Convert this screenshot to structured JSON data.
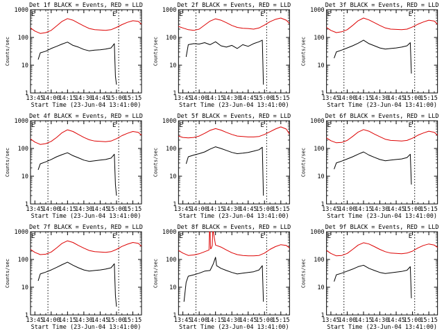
{
  "shared": {
    "legend_title_suffix": "BLACK = Events, RED = LLD",
    "xlabel": "Start Time (23-Jun-04 13:41:00)",
    "ylabel": "Counts/sec",
    "x_tick_labels": [
      "13:45",
      "14:00",
      "14:15",
      "14:30",
      "14:45",
      "15:00",
      "15:15"
    ],
    "x_tick_minutes": [
      -10,
      5,
      20,
      35,
      50,
      65,
      80
    ],
    "x_range_minutes": [
      -14,
      88
    ],
    "y_tick_labels": [
      "1",
      "10",
      "100",
      "1000"
    ],
    "y_tick_values": [
      1,
      10,
      100,
      1000
    ],
    "y_range": [
      1,
      1000
    ],
    "y_scale": "log",
    "vline_minutes": [
      2,
      67
    ],
    "event_marker": "E",
    "colors": {
      "events": "#000000",
      "lld": "#dd0000",
      "axes": "#000000",
      "vline": "#000000"
    }
  },
  "chart_data": [
    {
      "type": "line",
      "detector": "1f",
      "title": "Det 1f BLACK = Events, RED = LLD",
      "series": [
        {
          "name": "Events",
          "color": "#000000",
          "x": [
            -7,
            -5,
            0,
            5,
            10,
            15,
            20,
            25,
            30,
            35,
            40,
            45,
            50,
            55,
            60,
            63,
            64,
            65
          ],
          "y": [
            16,
            28,
            32,
            40,
            48,
            58,
            68,
            52,
            45,
            37,
            33,
            35,
            36,
            38,
            42,
            60,
            4,
            2
          ]
        },
        {
          "name": "LLD",
          "color": "#dd0000",
          "x": [
            -14,
            -10,
            -5,
            0,
            5,
            10,
            15,
            20,
            25,
            30,
            35,
            40,
            45,
            50,
            55,
            60,
            65,
            70,
            75,
            80,
            85,
            88
          ],
          "y": [
            220,
            170,
            140,
            150,
            180,
            260,
            380,
            480,
            420,
            330,
            260,
            210,
            190,
            185,
            180,
            190,
            230,
            290,
            350,
            400,
            380,
            300
          ]
        }
      ]
    },
    {
      "type": "line",
      "detector": "2f",
      "title": "Det 2f BLACK = Events, RED = LLD",
      "series": [
        {
          "name": "Events",
          "color": "#000000",
          "x": [
            -7,
            -5,
            0,
            5,
            10,
            15,
            20,
            25,
            30,
            35,
            40,
            45,
            50,
            55,
            60,
            63,
            64
          ],
          "y": [
            20,
            55,
            60,
            58,
            65,
            55,
            70,
            50,
            45,
            52,
            40,
            55,
            48,
            60,
            70,
            80,
            2
          ]
        },
        {
          "name": "LLD",
          "color": "#dd0000",
          "x": [
            -14,
            -10,
            -5,
            0,
            5,
            10,
            15,
            20,
            25,
            30,
            35,
            40,
            45,
            50,
            55,
            60,
            65,
            70,
            75,
            80,
            85,
            88
          ],
          "y": [
            250,
            220,
            190,
            180,
            200,
            280,
            390,
            470,
            420,
            340,
            270,
            230,
            215,
            210,
            200,
            220,
            280,
            370,
            450,
            500,
            420,
            320
          ]
        }
      ]
    },
    {
      "type": "line",
      "detector": "3f",
      "title": "Det 3f BLACK = Events, RED = LLD",
      "series": [
        {
          "name": "Events",
          "color": "#000000",
          "x": [
            -7,
            -5,
            0,
            5,
            10,
            15,
            20,
            25,
            30,
            35,
            40,
            45,
            50,
            55,
            60,
            63,
            64
          ],
          "y": [
            18,
            30,
            35,
            42,
            50,
            62,
            80,
            60,
            50,
            42,
            38,
            40,
            42,
            45,
            50,
            65,
            5
          ]
        },
        {
          "name": "LLD",
          "color": "#dd0000",
          "x": [
            -14,
            -10,
            -5,
            0,
            5,
            10,
            15,
            20,
            25,
            30,
            35,
            40,
            45,
            50,
            55,
            60,
            65,
            70,
            75,
            80,
            85,
            88
          ],
          "y": [
            230,
            180,
            150,
            160,
            190,
            270,
            400,
            500,
            430,
            340,
            270,
            220,
            200,
            195,
            190,
            200,
            240,
            300,
            360,
            420,
            390,
            300
          ]
        }
      ]
    },
    {
      "type": "line",
      "detector": "4f",
      "title": "Det 4f BLACK = Events, RED = LLD",
      "series": [
        {
          "name": "Events",
          "color": "#000000",
          "x": [
            -7,
            -5,
            0,
            5,
            10,
            15,
            20,
            25,
            30,
            35,
            40,
            45,
            50,
            55,
            60,
            63,
            64,
            65
          ],
          "y": [
            17,
            28,
            33,
            40,
            50,
            60,
            70,
            55,
            46,
            38,
            34,
            36,
            38,
            40,
            45,
            62,
            5,
            2
          ]
        },
        {
          "name": "LLD",
          "color": "#dd0000",
          "x": [
            -14,
            -10,
            -5,
            0,
            5,
            10,
            15,
            20,
            25,
            30,
            35,
            40,
            45,
            50,
            55,
            60,
            65,
            70,
            75,
            80,
            85,
            88
          ],
          "y": [
            220,
            170,
            140,
            150,
            180,
            250,
            370,
            470,
            410,
            320,
            250,
            205,
            185,
            180,
            175,
            185,
            225,
            290,
            350,
            410,
            380,
            300
          ]
        }
      ]
    },
    {
      "type": "line",
      "detector": "5f",
      "title": "Det 5f BLACK = Events, RED = LLD",
      "series": [
        {
          "name": "Events",
          "color": "#000000",
          "x": [
            -7,
            -5,
            0,
            5,
            10,
            15,
            20,
            25,
            30,
            35,
            40,
            45,
            50,
            55,
            60,
            63,
            64
          ],
          "y": [
            28,
            50,
            58,
            65,
            75,
            95,
            115,
            100,
            85,
            72,
            65,
            68,
            72,
            80,
            90,
            110,
            2
          ]
        },
        {
          "name": "LLD",
          "color": "#dd0000",
          "x": [
            -14,
            -10,
            -5,
            0,
            5,
            10,
            15,
            20,
            25,
            30,
            35,
            40,
            45,
            50,
            55,
            60,
            65,
            70,
            75,
            80,
            85,
            88
          ],
          "y": [
            280,
            250,
            240,
            250,
            280,
            350,
            450,
            520,
            460,
            380,
            320,
            280,
            270,
            260,
            260,
            270,
            320,
            400,
            500,
            600,
            500,
            330
          ]
        }
      ]
    },
    {
      "type": "line",
      "detector": "6f",
      "title": "Det 6f BLACK = Events, RED = LLD",
      "series": [
        {
          "name": "Events",
          "color": "#000000",
          "x": [
            -7,
            -5,
            0,
            5,
            10,
            15,
            20,
            25,
            30,
            35,
            40,
            45,
            50,
            55,
            60,
            63,
            64
          ],
          "y": [
            18,
            30,
            35,
            42,
            50,
            62,
            75,
            58,
            48,
            40,
            36,
            38,
            40,
            42,
            47,
            62,
            5
          ]
        },
        {
          "name": "LLD",
          "color": "#dd0000",
          "x": [
            -14,
            -10,
            -5,
            0,
            5,
            10,
            15,
            20,
            25,
            30,
            35,
            40,
            45,
            50,
            55,
            60,
            65,
            70,
            75,
            80,
            85,
            88
          ],
          "y": [
            240,
            190,
            160,
            165,
            195,
            270,
            390,
            480,
            420,
            330,
            265,
            215,
            195,
            190,
            185,
            195,
            235,
            300,
            360,
            420,
            380,
            300
          ]
        }
      ]
    },
    {
      "type": "line",
      "detector": "7f",
      "title": "Det 7f BLACK = Events, RED = LLD",
      "series": [
        {
          "name": "Events",
          "color": "#000000",
          "x": [
            -7,
            -5,
            0,
            5,
            10,
            15,
            20,
            25,
            30,
            35,
            40,
            45,
            50,
            55,
            60,
            63,
            64,
            65
          ],
          "y": [
            17,
            30,
            35,
            42,
            52,
            65,
            80,
            62,
            50,
            42,
            38,
            40,
            42,
            45,
            50,
            70,
            5,
            2
          ]
        },
        {
          "name": "LLD",
          "color": "#dd0000",
          "x": [
            -14,
            -10,
            -5,
            0,
            5,
            10,
            15,
            20,
            25,
            30,
            35,
            40,
            45,
            50,
            55,
            60,
            65,
            70,
            75,
            80,
            85,
            88
          ],
          "y": [
            230,
            180,
            150,
            155,
            185,
            260,
            380,
            470,
            410,
            320,
            255,
            210,
            190,
            185,
            180,
            190,
            230,
            295,
            355,
            410,
            380,
            300
          ]
        }
      ]
    },
    {
      "type": "line",
      "detector": "8f",
      "title": "Det 8f BLACK = Events, RED = LLD",
      "series": [
        {
          "name": "Events",
          "color": "#000000",
          "x": [
            -9,
            -7,
            -5,
            0,
            5,
            10,
            15,
            18,
            20,
            21,
            25,
            30,
            35,
            40,
            45,
            50,
            55,
            60,
            63,
            64
          ],
          "y": [
            3,
            15,
            25,
            28,
            32,
            38,
            40,
            70,
            120,
            60,
            48,
            40,
            34,
            30,
            32,
            34,
            36,
            42,
            60,
            3
          ]
        },
        {
          "name": "LLD",
          "color": "#dd0000",
          "x": [
            -14,
            -10,
            -5,
            0,
            5,
            10,
            14,
            14.5,
            15,
            15.5,
            16,
            17,
            17.5,
            18,
            20,
            25,
            30,
            35,
            40,
            45,
            50,
            55,
            60,
            65,
            70,
            75,
            80,
            85,
            88
          ],
          "y": [
            210,
            170,
            140,
            145,
            160,
            190,
            220,
            1000,
            1000,
            240,
            250,
            320,
            1000,
            1000,
            330,
            280,
            220,
            175,
            150,
            140,
            135,
            135,
            140,
            170,
            230,
            290,
            340,
            320,
            260
          ]
        }
      ]
    },
    {
      "type": "line",
      "detector": "9f",
      "title": "Det 9f BLACK = Events, RED = LLD",
      "series": [
        {
          "name": "Events",
          "color": "#000000",
          "x": [
            -7,
            -5,
            0,
            5,
            10,
            15,
            20,
            25,
            30,
            35,
            40,
            45,
            50,
            55,
            60,
            63,
            64
          ],
          "y": [
            16,
            28,
            32,
            38,
            45,
            55,
            62,
            48,
            40,
            34,
            31,
            33,
            35,
            37,
            41,
            55,
            4
          ]
        },
        {
          "name": "LLD",
          "color": "#dd0000",
          "x": [
            -14,
            -10,
            -5,
            0,
            5,
            10,
            15,
            20,
            25,
            30,
            35,
            40,
            45,
            50,
            55,
            60,
            65,
            70,
            75,
            80,
            85,
            88
          ],
          "y": [
            210,
            165,
            135,
            140,
            165,
            230,
            330,
            400,
            360,
            290,
            230,
            190,
            170,
            165,
            160,
            170,
            200,
            260,
            320,
            360,
            330,
            270
          ]
        }
      ]
    }
  ]
}
